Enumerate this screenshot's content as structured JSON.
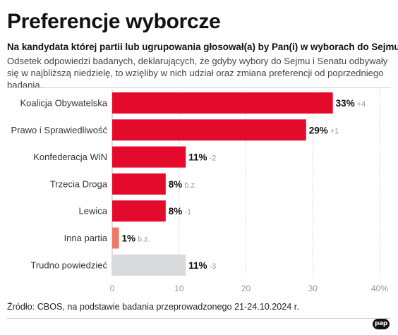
{
  "title": "Preferencje wyborcze",
  "subtitle": "Na kandydata której partii lub ugrupowania głosował(a) by Pan(i) w wyborach do Sejmu?",
  "description": "Odsetek odpowiedzi badanych, deklarujących, że gdyby wybory do Sejmu i Senatu odbywały się w najbliższą niedzielę, to wzięliby w nich udział oraz zmiana preferencji od poprzedniego badania.",
  "source": "Źródło: CBOS, na podstawie badania przeprowadzonego 21-24.10.2024 r.",
  "logo_text": "pap",
  "chart_data": {
    "type": "bar",
    "orientation": "horizontal",
    "categories": [
      "Koalicja Obywatelska",
      "Prawo i Sprawiedliwość",
      "Konfederacja WiN",
      "Trzecia Droga",
      "Lewica",
      "Inna partia",
      "Trudno powiedzieć"
    ],
    "values": [
      33,
      29,
      11,
      8,
      8,
      1,
      11
    ],
    "value_labels": [
      "33%",
      "29%",
      "11%",
      "8%",
      "8%",
      "1%",
      "11%"
    ],
    "change_labels": [
      "+4",
      "+1",
      "-2",
      "b.z.",
      "-1",
      "b.z.",
      "-3"
    ],
    "bar_colors": [
      "#e30a2c",
      "#e30a2c",
      "#e30a2c",
      "#e30a2c",
      "#e30a2c",
      "#f07868",
      "#d9dadb"
    ],
    "xlim": [
      0,
      40
    ],
    "xticks": [
      "0",
      "10",
      "20",
      "30",
      "40%"
    ],
    "grid": true
  }
}
